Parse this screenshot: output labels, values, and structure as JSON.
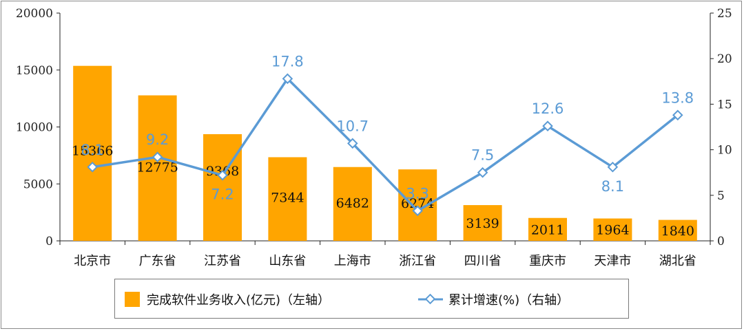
{
  "chart_data": {
    "type": "bar+line",
    "categories": [
      "北京市",
      "广东省",
      "江苏省",
      "山东省",
      "上海市",
      "浙江省",
      "四川省",
      "重庆市",
      "天津市",
      "湖北省"
    ],
    "series": [
      {
        "name": "完成软件业务收入(亿元)（左轴）",
        "type": "bar",
        "axis": "left",
        "values": [
          15366,
          12775,
          9368,
          7344,
          6482,
          6274,
          3139,
          2011,
          1964,
          1840
        ],
        "color": "#ffa500"
      },
      {
        "name": "累计增速(%)（右轴）",
        "type": "line",
        "axis": "right",
        "values": [
          8.1,
          9.2,
          7.2,
          17.8,
          10.7,
          3.3,
          7.5,
          12.6,
          8.1,
          13.8
        ],
        "color": "#5b9bd5"
      }
    ],
    "ylim_left": [
      0,
      20000
    ],
    "ylim_right": [
      0,
      25
    ],
    "yticks_left": [
      "0",
      "5000",
      "10000",
      "15000",
      "20000"
    ],
    "yticks_right": [
      "0",
      "5",
      "10",
      "15",
      "20",
      "25"
    ],
    "grid": false,
    "legend_position": "bottom"
  },
  "legend": {
    "bar_label": "完成软件业务收入(亿元)（左轴）",
    "line_label": "累计增速(%)（右轴）"
  }
}
